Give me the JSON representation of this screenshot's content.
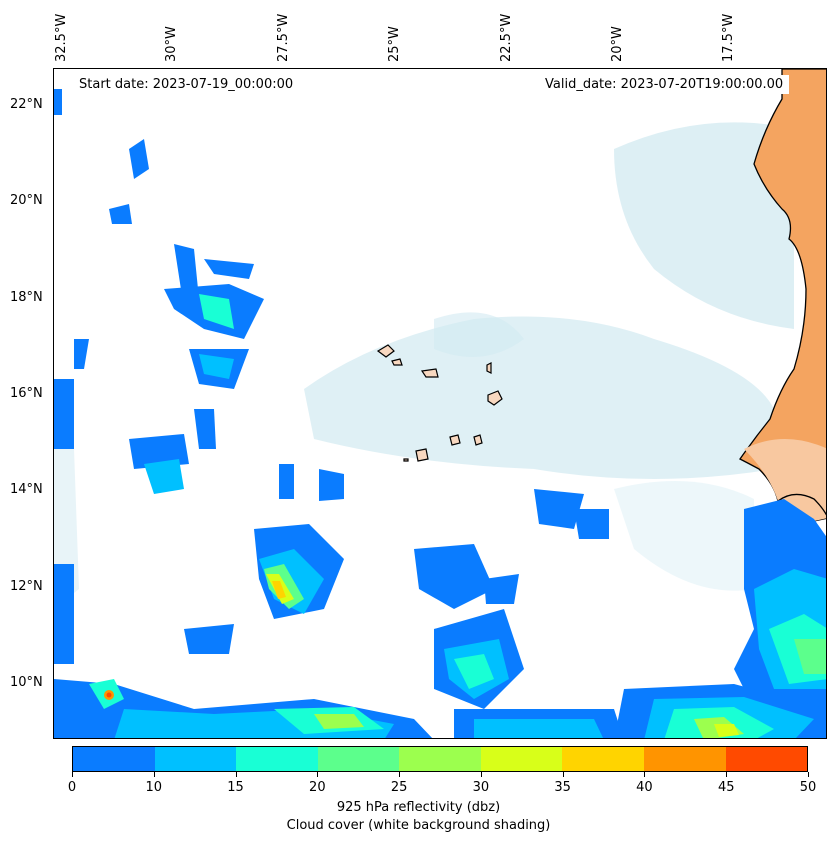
{
  "map": {
    "start_date": "Start date: 2023-07-19_00:00:00",
    "valid_date": "Valid_date: 2023-07-20T19:00:00.00",
    "lon_labels": [
      "32.5°W",
      "30°W",
      "27.5°W",
      "25°W",
      "22.5°W",
      "20°W",
      "17.5°W"
    ],
    "lat_labels": [
      "22°N",
      "20°N",
      "18°N",
      "16°N",
      "14°N",
      "12°N",
      "10°N"
    ],
    "colors": {
      "land": "#f4a460",
      "cloud": "#add8e6",
      "islands": "#f8d8c0"
    }
  },
  "colorbar": {
    "ticks": [
      "0",
      "10",
      "15",
      "20",
      "25",
      "30",
      "35",
      "40",
      "45",
      "50"
    ],
    "colors": [
      "#0a7cff",
      "#00c0ff",
      "#19ffd5",
      "#5cff8c",
      "#9cff4e",
      "#d8ff19",
      "#ffd400",
      "#ff9400",
      "#ff4a00"
    ],
    "label_line1": "925 hPa reflectivity (dbz)",
    "label_line2": "Cloud cover (white background shading)"
  }
}
